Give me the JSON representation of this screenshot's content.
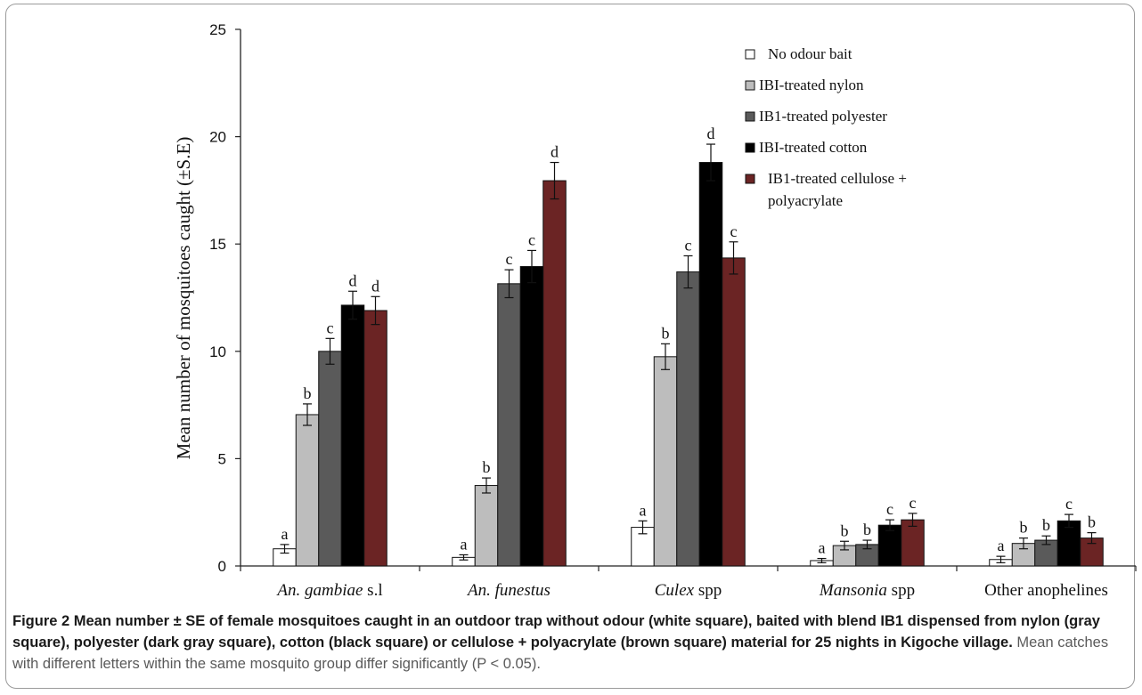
{
  "chart_data": {
    "type": "bar",
    "categories": [
      {
        "italic": "An. gambiae",
        "rest": " s.l"
      },
      {
        "italic": "An. funestus",
        "rest": ""
      },
      {
        "italic": "Culex",
        "rest": " spp"
      },
      {
        "italic": "Mansonia",
        "rest": " spp"
      },
      {
        "italic": "",
        "rest": "Other anophelines"
      }
    ],
    "series": [
      {
        "name": "No odour bait",
        "color": "#ffffff",
        "values": [
          0.8,
          0.4,
          1.8,
          0.25,
          0.3
        ],
        "errors": [
          0.2,
          0.12,
          0.3,
          0.1,
          0.15
        ],
        "letters": [
          "a",
          "a",
          "a",
          "a",
          "a"
        ]
      },
      {
        "name": "IBI-treated nylon",
        "color": "#bdbdbd",
        "values": [
          7.05,
          3.75,
          9.75,
          0.95,
          1.05
        ],
        "errors": [
          0.5,
          0.35,
          0.6,
          0.2,
          0.25
        ],
        "letters": [
          "b",
          "b",
          "b",
          "b",
          "b"
        ]
      },
      {
        "name": "IB1-treated polyester",
        "color": "#5a5a5a",
        "values": [
          10.0,
          13.15,
          13.7,
          1.0,
          1.2
        ],
        "errors": [
          0.6,
          0.65,
          0.75,
          0.2,
          0.2
        ],
        "letters": [
          "c",
          "c",
          "c",
          "b",
          "b"
        ]
      },
      {
        "name": "IBI-treated cotton",
        "color": "#000000",
        "values": [
          12.15,
          13.95,
          18.8,
          1.9,
          2.1
        ],
        "errors": [
          0.65,
          0.75,
          0.85,
          0.25,
          0.3
        ],
        "letters": [
          "d",
          "c",
          "d",
          "c",
          "c"
        ]
      },
      {
        "name": "IB1-treated cellulose + polyacrylate",
        "color": "#6b2424",
        "values": [
          11.9,
          17.95,
          14.35,
          2.15,
          1.3
        ],
        "errors": [
          0.65,
          0.85,
          0.75,
          0.3,
          0.25
        ],
        "letters": [
          "d",
          "d",
          "c",
          "c",
          "b"
        ]
      }
    ],
    "legend_lines": [
      [
        "No odour bait"
      ],
      [
        "IBI-treated nylon"
      ],
      [
        "IB1-treated polyester"
      ],
      [
        "IBI-treated cotton"
      ],
      [
        "IB1-treated cellulose +",
        "polyacrylate"
      ]
    ],
    "ylabel": "Mean number of mosquitoes caught (±S.E)",
    "xlabel": "",
    "ylim": [
      0,
      25
    ],
    "yticks": [
      0,
      5,
      10,
      15,
      20,
      25
    ],
    "grid": false,
    "legend_position": "top-right"
  },
  "caption": {
    "bold": "Figure 2 Mean number ± SE of female mosquitoes caught in an outdoor trap without odour (white square), baited with blend IB1 dispensed from nylon (gray square), polyester (dark gray square), cotton (black square) or cellulose + polyacrylate (brown square) material for 25 nights in Kigoche village.",
    "normal": " Mean catches with different letters within the same mosquito group differ significantly (P < 0.05)."
  }
}
